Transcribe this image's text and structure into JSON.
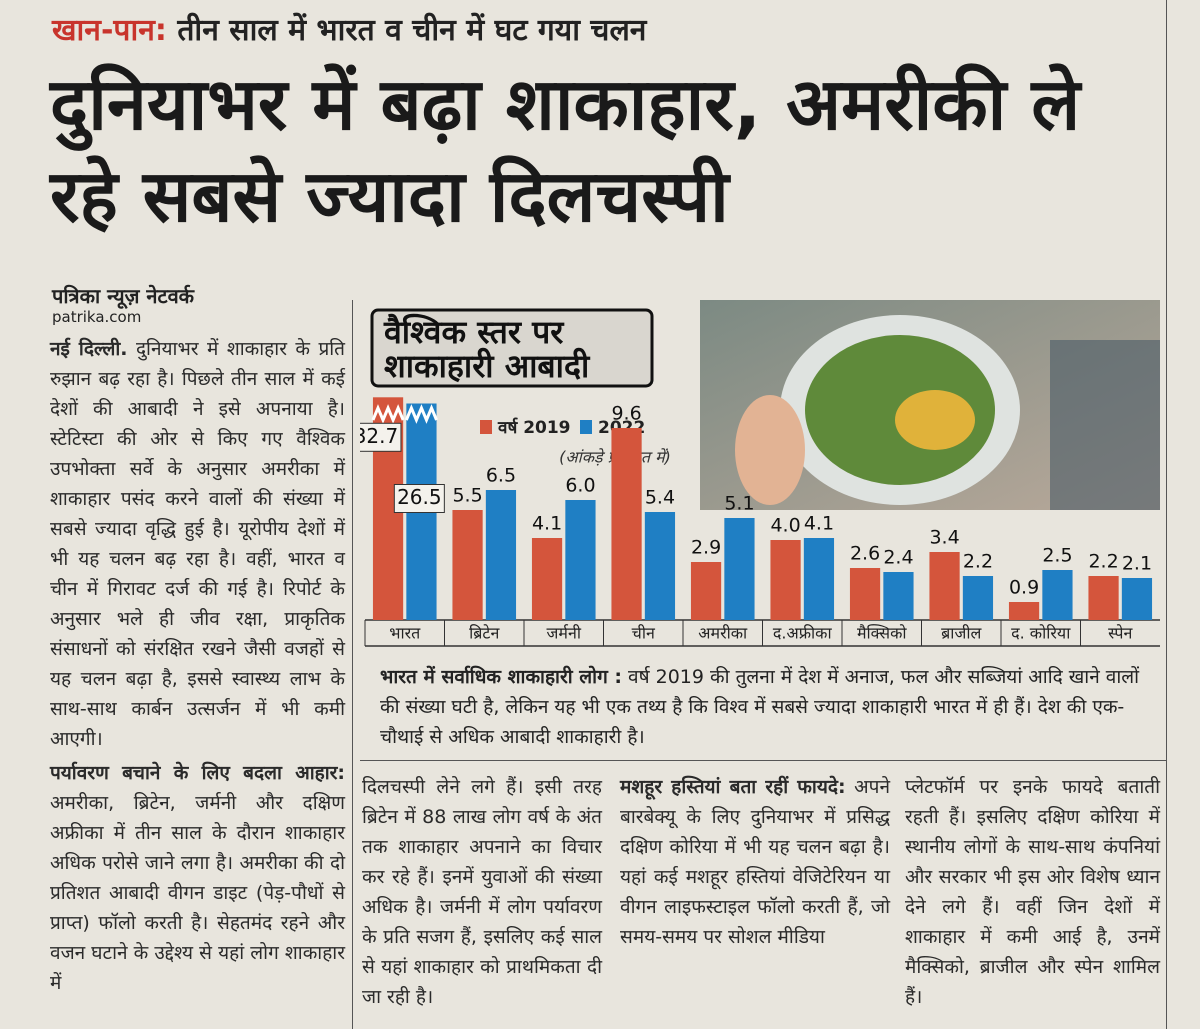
{
  "article": {
    "kicker": "खान-पान:",
    "kicker_text": "तीन साल में भारत व चीन में घट गया चलन",
    "headline": "दुनियाभर में बढ़ा शाकाहार, अमरीकी ले रहे सबसे ज्यादा दिलचस्पी",
    "byline": "पत्रिका न्यूज़ नेटवर्क",
    "site": "patrika.com",
    "dateline": "नई दिल्ली.",
    "para1": "दुनियाभर में शाकाहार के प्रति रुझान बढ़ रहा है। पिछले तीन साल में कई देशों की आबादी ने इसे अपनाया है। स्टेटिस्टा की ओर से किए गए वैश्विक उपभोक्ता सर्वे के अनुसार अमरीका में शाकाहार पसंद करने वालों की संख्या में सबसे ज्यादा वृद्धि हुई है। यूरोपीय देशों में भी यह चलन बढ़ रहा है। वहीं, भारत व चीन में गिरावट दर्ज की गई है। रिपोर्ट के अनुसार भले ही जीव रक्षा, प्राकृतिक संसाधनों को संरक्षित रखने जैसी वजहों से यह चलन बढ़ा है, इससे स्वास्थ्य लाभ के साथ-साथ कार्बन उत्सर्जन में भी कमी आएगी।",
    "subhead1": "पर्यावरण बचाने के लिए बदला आहार:",
    "para2": "अमरीका, ब्रिटेन, जर्मनी और दक्षिण अफ्रीका में तीन साल के दौरान शाकाहार अधिक परोसे जाने लगा है। अमरीका की दो प्रतिशत आबादी वीगन डाइट (पेड़-पौधों से प्राप्त) फॉलो करती है। सेहतमंद रहने और वजन घटाने के उद्देश्य से यहां लोग शाकाहार में",
    "col2": "दिलचस्पी लेने लगे हैं। इसी तरह ब्रिटेन में 88 लाख लोग वर्ष के अंत तक शाकाहार अपनाने का विचार कर रहे हैं। इनमें युवाओं की संख्या अधिक है। जर्मनी में लोग पर्यावरण के प्रति सजग हैं, इसलिए कई साल से यहां शाकाहार को प्राथमिकता दी जा रही है।",
    "subhead2": "मशहूर हस्तियां बता रहीं फायदे:",
    "col3": "अपने बारबेक्यू के लिए दुनियाभर में प्रसिद्ध दक्षिण कोरिया में भी यह चलन बढ़ा है। यहां कई मशहूर हस्तियां वेजिटेरियन या वीगन लाइफस्टाइल फॉलो करती हैं, जो समय-समय पर सोशल मीडिया",
    "col4": "प्लेटफॉर्म पर इनके फायदे बताती रहती हैं। इसलिए दक्षिण कोरिया में स्थानीय लोगों के साथ-साथ कंपनियां और सरकार भी इस ओर विशेष ध्यान देने लगे हैं। वहीं जिन देशों में शाकाहार में कमी आई है, उनमें मैक्सिको, ब्राजील और स्पेन शामिल हैं।",
    "caption_head": "भारत में सर्वाधिक शाकाहारी लोग :",
    "caption": "वर्ष 2019 की तुलना में देश में अनाज, फल और सब्जियां आदि खाने वालों की संख्या घटी है, लेकिन यह भी एक तथ्य है कि विश्व में सबसे ज्यादा शाकाहारी भारत में ही हैं। देश की एक-चौथाई से अधिक आबादी शाकाहारी है।"
  },
  "chart_data": {
    "type": "bar",
    "title": [
      "वैश्विक स्तर पर",
      "शाकाहारी आबादी"
    ],
    "subtitle": "(आंकड़े प्रतिशत में)",
    "categories": [
      "भारत",
      "ब्रिटेन",
      "जर्मनी",
      "चीन",
      "अमरीका",
      "द.अफ्रीका",
      "मैक्सिको",
      "ब्राजील",
      "द. कोरिया",
      "स्पेन"
    ],
    "series": [
      {
        "name": "वर्ष 2019",
        "color": "#d4553c",
        "values": [
          32.7,
          5.5,
          4.1,
          9.6,
          2.9,
          4.0,
          2.6,
          3.4,
          0.9,
          2.2
        ],
        "value_labels": [
          "32.7",
          "5.5",
          "4.1",
          "9.6",
          "2.9",
          "4.0",
          "2.6",
          "3.4",
          "0.9",
          "2.2"
        ]
      },
      {
        "name": "2022",
        "color": "#1f7fc4",
        "values": [
          26.5,
          6.5,
          6.0,
          5.4,
          5.1,
          4.1,
          2.4,
          2.2,
          2.5,
          2.1
        ],
        "value_labels": [
          "26.5",
          "6.5",
          "6.0",
          "5.4",
          "5.1",
          "4.1",
          "2.4",
          "2.2",
          "2.5",
          "2.1"
        ]
      }
    ],
    "axis_break": 10
  }
}
